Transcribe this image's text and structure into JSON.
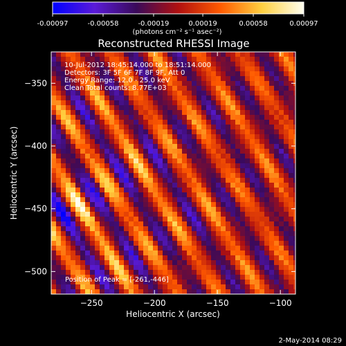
{
  "chart_data": {
    "type": "heatmap",
    "title": "Reconstructed RHESSI Image",
    "xlabel": "Heliocentric X (arcsec)",
    "ylabel": "Heliocentric Y (arcsec)",
    "xlim": [
      -282,
      -88
    ],
    "ylim": [
      -518,
      -325
    ],
    "x_ticks": [
      -250,
      -200,
      -150,
      -100
    ],
    "y_ticks": [
      -350,
      -400,
      -450,
      -500
    ],
    "colorbar": {
      "range": [
        -0.00097,
        0.00097
      ],
      "tick_values": [
        -0.00097,
        -0.00058,
        -0.00019,
        0.00019,
        0.00058,
        0.00097
      ],
      "tick_labels": [
        "-0.00097",
        "-0.00058",
        "-0.00019",
        "0.00019",
        "0.00058",
        "0.00097"
      ],
      "units_label": "(photons cm⁻² s⁻¹ asec⁻²)",
      "colormap": [
        "#0000ff",
        "#5a1ad8",
        "#3a0a5a",
        "#b01010",
        "#ff5a00",
        "#ffd040",
        "#fffff0"
      ]
    },
    "info_lines": [
      "10-Jul-2012 18:45:14.000 to 18:51:14.000",
      "Detectors: 3F 5F 6F 7F 8F 9F, Att 0",
      "Energy Range: 12.0 - 25.0 keV",
      "Clean    Total counts: 8.77E+03"
    ],
    "peak": {
      "label": "Position of Peak = [-261,-446]",
      "x": -261,
      "y": -446
    },
    "pattern": {
      "description_values": "diagonal positive-flux stripes (data units, arcsec)",
      "stripe_spacing_arcsec": 34,
      "stripe_slope": 1.6
    }
  },
  "footer": {
    "date": "2-May-2014 08:29"
  }
}
